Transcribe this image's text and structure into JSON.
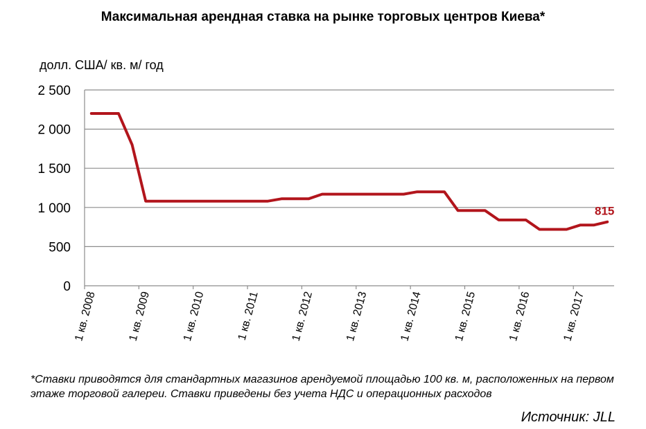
{
  "chart_data": {
    "type": "line",
    "title": "Максимальная арендная ставка на рынке торговых центров Киева*",
    "ylabel": "долл. США/ кв. м/ год",
    "ylim": [
      0,
      2500
    ],
    "yticks": [
      0,
      500,
      1000,
      1500,
      2000,
      2500
    ],
    "ytick_labels": [
      "0",
      "500",
      "1 000",
      "1 500",
      "2 000",
      "2 500"
    ],
    "xtick_labels": [
      "1 кв. 2008",
      "1 кв. 2009",
      "1 кв. 2010",
      "1 кв. 2011",
      "1 кв. 2012",
      "1 кв. 2013",
      "1 кв. 2014",
      "1 кв. 2015",
      "1 кв. 2016",
      "1 кв. 2017"
    ],
    "grid": true,
    "line_color": "#b2151c",
    "series": [
      {
        "values": [
          2200,
          2200,
          2200,
          1800,
          1080,
          1080,
          1080,
          1080,
          1080,
          1080,
          1080,
          1080,
          1080,
          1080,
          1110,
          1110,
          1110,
          1170,
          1170,
          1170,
          1170,
          1170,
          1170,
          1170,
          1200,
          1200,
          1200,
          960,
          960,
          960,
          840,
          840,
          840,
          720,
          720,
          720,
          775,
          775,
          815
        ]
      }
    ],
    "data_labels": [
      {
        "index": 38,
        "text": "815"
      }
    ]
  },
  "footnote": "*Ставки приводятся для стандартных магазинов арендуемой площадью 100 кв. м, расположенных на первом этаже торговой галереи. Ставки приведены без учета НДС и операционных расходов",
  "source": "Источник: JLL"
}
